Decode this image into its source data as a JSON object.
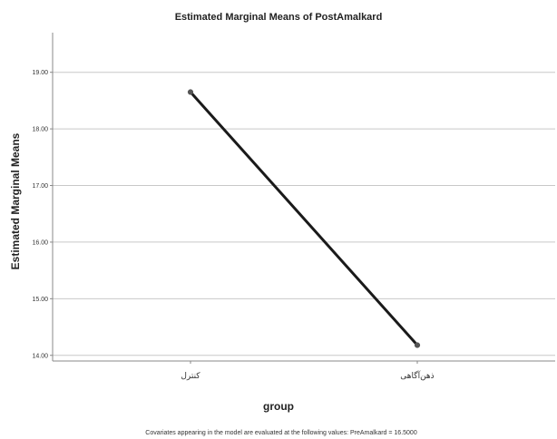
{
  "chart_data": {
    "type": "line",
    "title": "Estimated Marginal Means of PostAmalkard",
    "xlabel": "group",
    "ylabel": "Estimated Marginal Means",
    "categories": [
      "کنترل",
      "ذهن‌آگاهی"
    ],
    "series": [
      {
        "values": [
          18.65,
          14.18
        ]
      }
    ],
    "y_ticks": [
      "14.00",
      "15.00",
      "16.00",
      "17.00",
      "18.00",
      "19.00"
    ],
    "ylim": [
      13.9,
      19.7
    ],
    "grid": true,
    "line_color": "#1a1a1a",
    "footnote": "Covariates appearing in the model are evaluated at the following values: PreAmalkard = 16.5000"
  }
}
